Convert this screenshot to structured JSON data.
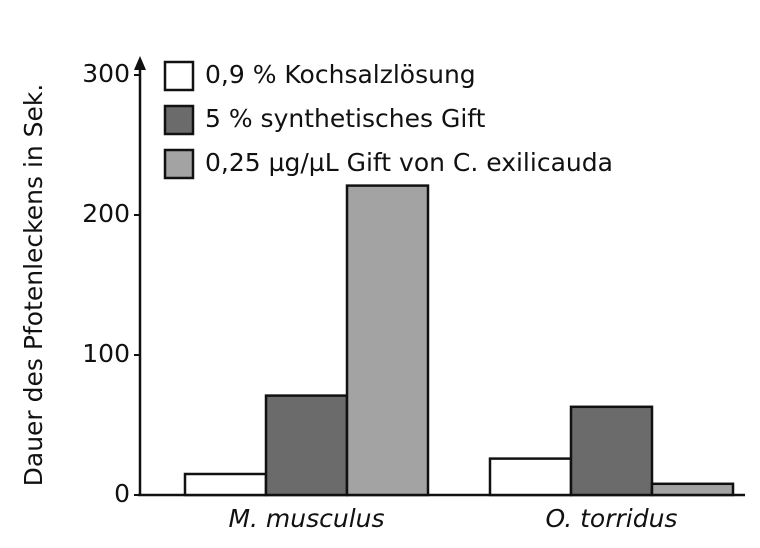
{
  "chart_data": {
    "type": "bar",
    "y_label": "Dauer des Pfotenleckens in Sek.",
    "categories": [
      "M. musculus",
      "O. torridus"
    ],
    "series": [
      {
        "name": "0,9 % Kochsalzlösung",
        "color": "#ffffff",
        "values": [
          15,
          26
        ]
      },
      {
        "name": "5 % synthetisches Gift",
        "color": "#6b6b6b",
        "values": [
          71,
          63
        ]
      },
      {
        "name": "0,25 µg/µL Gift von C. exilicauda",
        "color": "#a3a3a3",
        "values": [
          221,
          8
        ]
      }
    ],
    "ylim": [
      0,
      300
    ],
    "yticks": [
      0,
      100,
      200,
      300
    ],
    "legend": "top-left"
  }
}
